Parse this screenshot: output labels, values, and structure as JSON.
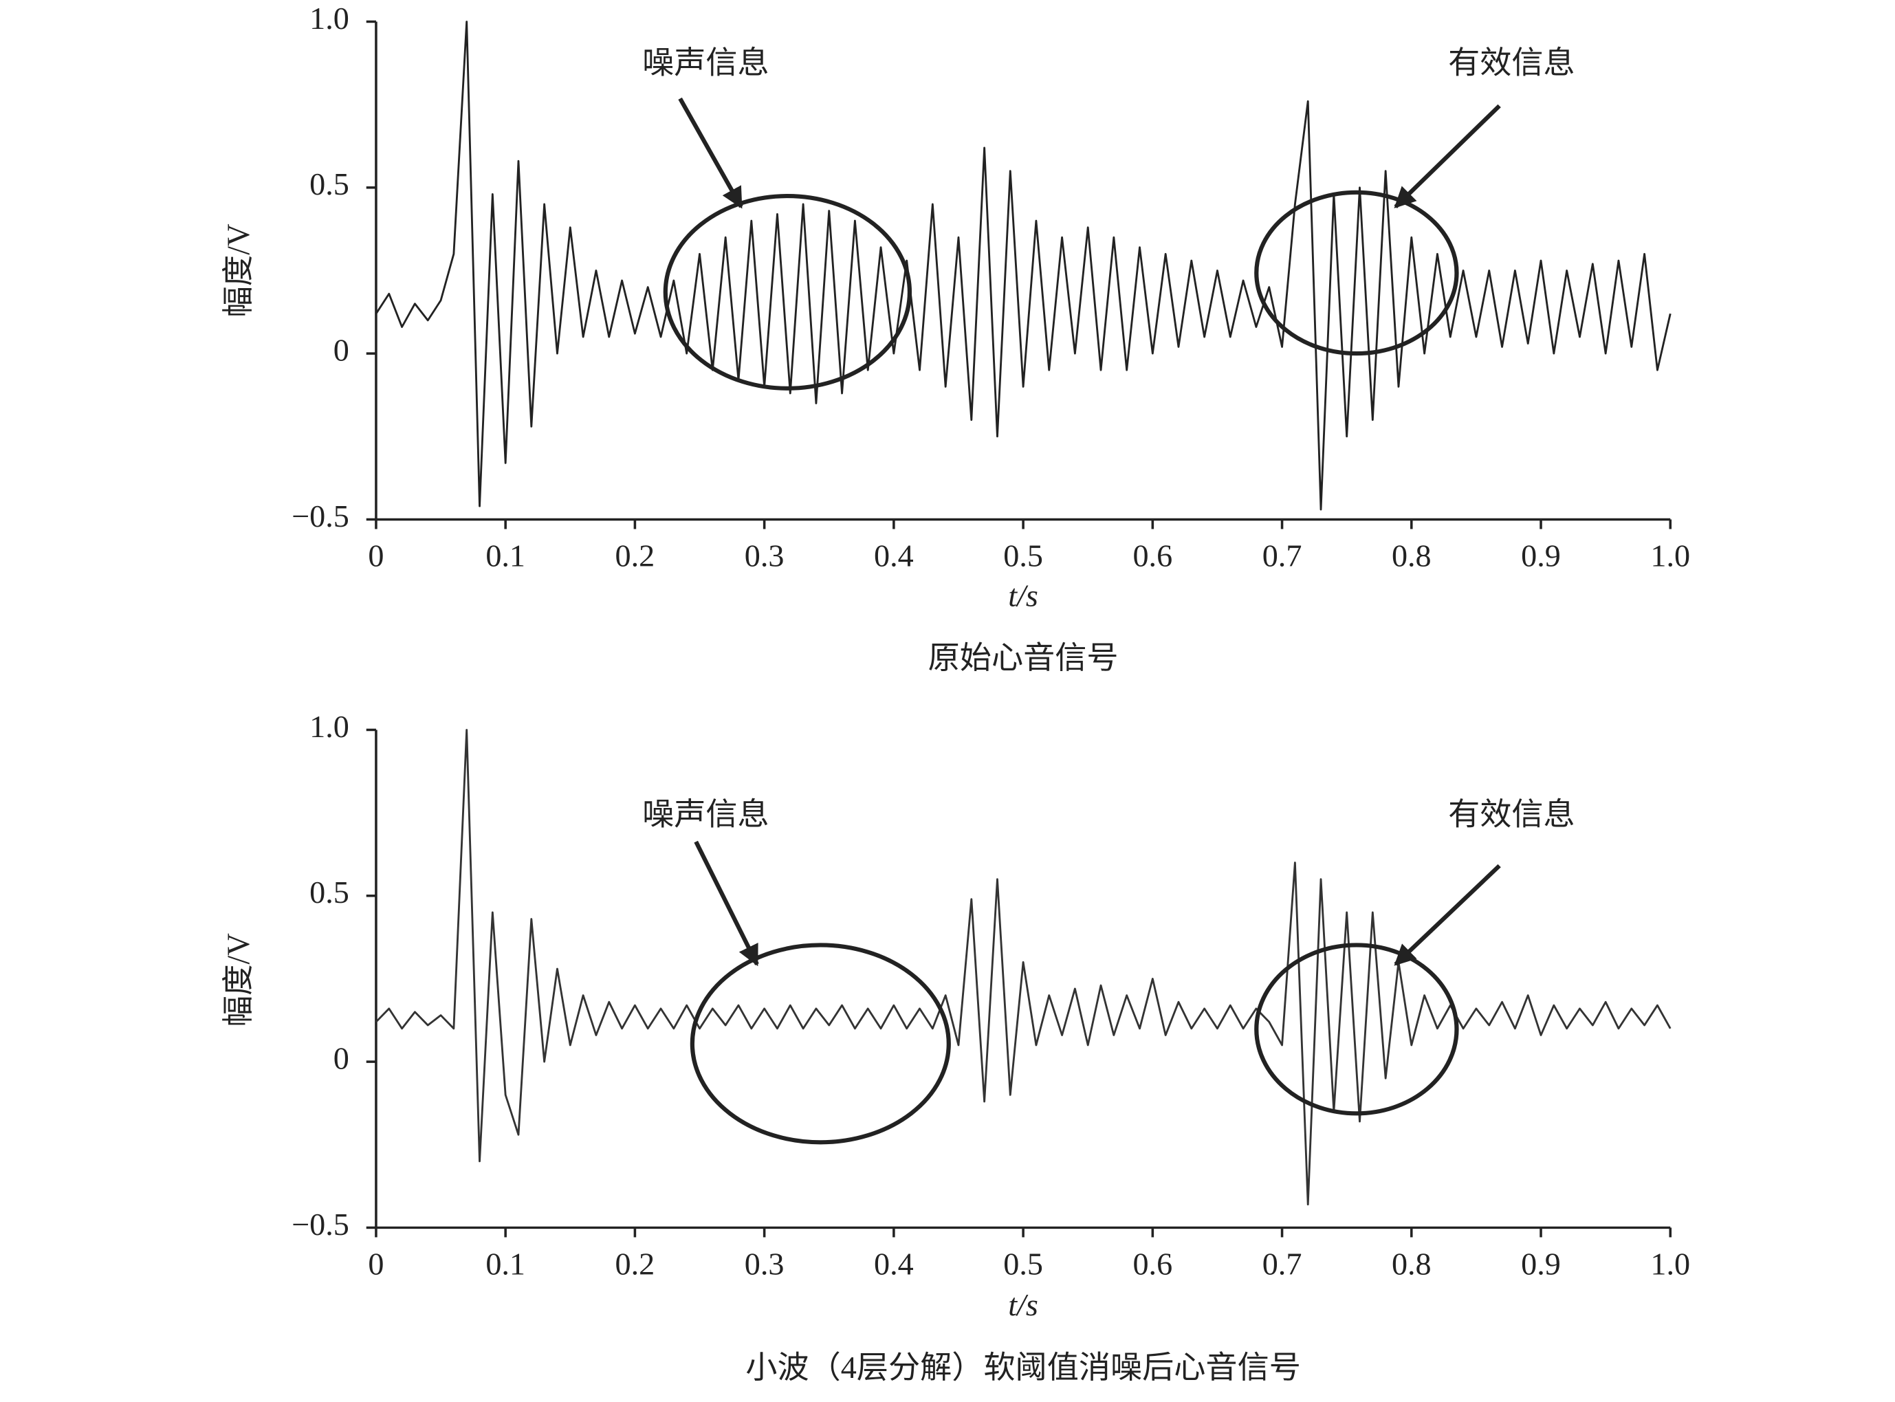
{
  "chart_data": [
    {
      "type": "line",
      "color": "#222222",
      "ylabel": "幅度/V",
      "xlabel": "t/s",
      "caption": "原始心音信号",
      "annotations": [
        "噪声信息",
        "有效信息"
      ],
      "xlim": [
        0,
        1
      ],
      "ylim": [
        -0.5,
        1
      ],
      "xticks": [
        0,
        0.1,
        0.2,
        0.3,
        0.4,
        0.5,
        0.6,
        0.7,
        0.8,
        0.9,
        {
          "value": 1,
          "label": "1.0"
        }
      ],
      "yticks": [
        {
          "value": 1,
          "label": "1.0"
        },
        0.5,
        0,
        {
          "value": -0.5,
          "label": "−0.5"
        }
      ],
      "x": [
        0,
        0.01,
        0.02,
        0.03,
        0.04,
        0.05,
        0.06,
        0.07,
        0.08,
        0.09,
        0.1,
        0.11,
        0.12,
        0.13,
        0.14,
        0.15,
        0.16,
        0.17,
        0.18,
        0.19,
        0.2,
        0.21,
        0.22,
        0.23,
        0.24,
        0.25,
        0.26,
        0.27,
        0.28,
        0.29,
        0.3,
        0.31,
        0.32,
        0.33,
        0.34,
        0.35,
        0.36,
        0.37,
        0.38,
        0.39,
        0.4,
        0.41,
        0.42,
        0.43,
        0.44,
        0.45,
        0.46,
        0.47,
        0.48,
        0.49,
        0.5,
        0.51,
        0.52,
        0.53,
        0.54,
        0.55,
        0.56,
        0.57,
        0.58,
        0.59,
        0.6,
        0.61,
        0.62,
        0.63,
        0.64,
        0.65,
        0.66,
        0.67,
        0.68,
        0.69,
        0.7,
        0.71,
        0.72,
        0.73,
        0.74,
        0.75,
        0.76,
        0.77,
        0.78,
        0.79,
        0.8,
        0.81,
        0.82,
        0.83,
        0.84,
        0.85,
        0.86,
        0.87,
        0.88,
        0.89,
        0.9,
        0.91,
        0.92,
        0.93,
        0.94,
        0.95,
        0.96,
        0.97,
        0.98,
        0.99,
        1
      ],
      "values": [
        0.12,
        0.18,
        0.08,
        0.15,
        0.1,
        0.16,
        0.3,
        1.0,
        -0.46,
        0.48,
        -0.33,
        0.58,
        -0.22,
        0.45,
        0.0,
        0.38,
        0.05,
        0.25,
        0.05,
        0.22,
        0.06,
        0.2,
        0.05,
        0.22,
        0.0,
        0.3,
        -0.05,
        0.35,
        -0.08,
        0.4,
        -0.1,
        0.42,
        -0.12,
        0.45,
        -0.15,
        0.43,
        -0.12,
        0.4,
        -0.05,
        0.32,
        0.0,
        0.28,
        -0.05,
        0.45,
        -0.1,
        0.35,
        -0.2,
        0.62,
        -0.25,
        0.55,
        -0.1,
        0.4,
        -0.05,
        0.35,
        0.0,
        0.38,
        -0.05,
        0.35,
        -0.05,
        0.32,
        0.0,
        0.3,
        0.02,
        0.28,
        0.05,
        0.25,
        0.05,
        0.22,
        0.08,
        0.2,
        0.02,
        0.45,
        0.76,
        -0.47,
        0.48,
        -0.25,
        0.5,
        -0.2,
        0.55,
        -0.1,
        0.35,
        0.0,
        0.3,
        0.05,
        0.25,
        0.05,
        0.25,
        0.02,
        0.25,
        0.03,
        0.28,
        0.0,
        0.25,
        0.05,
        0.27,
        0.0,
        0.28,
        0.02,
        0.3,
        -0.05,
        0.12
      ]
    },
    {
      "type": "line",
      "color": "#333333",
      "ylabel": "幅度/V",
      "xlabel": "t/s",
      "caption": "小波（4层分解）软阈值消噪后心音信号",
      "annotations": [
        "噪声信息",
        "有效信息"
      ],
      "xlim": [
        0,
        1
      ],
      "ylim": [
        -0.5,
        1
      ],
      "xticks": [
        0,
        0.1,
        0.2,
        0.3,
        0.4,
        0.5,
        0.6,
        0.7,
        0.8,
        0.9,
        {
          "value": 1,
          "label": "1.0"
        }
      ],
      "yticks": [
        {
          "value": 1,
          "label": "1.0"
        },
        0.5,
        0,
        {
          "value": -0.5,
          "label": "−0.5"
        }
      ],
      "x": [
        0,
        0.01,
        0.02,
        0.03,
        0.04,
        0.05,
        0.06,
        0.07,
        0.08,
        0.09,
        0.1,
        0.11,
        0.12,
        0.13,
        0.14,
        0.15,
        0.16,
        0.17,
        0.18,
        0.19,
        0.2,
        0.21,
        0.22,
        0.23,
        0.24,
        0.25,
        0.26,
        0.27,
        0.28,
        0.29,
        0.3,
        0.31,
        0.32,
        0.33,
        0.34,
        0.35,
        0.36,
        0.37,
        0.38,
        0.39,
        0.4,
        0.41,
        0.42,
        0.43,
        0.44,
        0.45,
        0.46,
        0.47,
        0.48,
        0.49,
        0.5,
        0.51,
        0.52,
        0.53,
        0.54,
        0.55,
        0.56,
        0.57,
        0.58,
        0.59,
        0.6,
        0.61,
        0.62,
        0.63,
        0.64,
        0.65,
        0.66,
        0.67,
        0.68,
        0.69,
        0.7,
        0.71,
        0.72,
        0.73,
        0.74,
        0.75,
        0.76,
        0.77,
        0.78,
        0.79,
        0.8,
        0.81,
        0.82,
        0.83,
        0.84,
        0.85,
        0.86,
        0.87,
        0.88,
        0.89,
        0.9,
        0.91,
        0.92,
        0.93,
        0.94,
        0.95,
        0.96,
        0.97,
        0.98,
        0.99,
        1
      ],
      "values": [
        0.12,
        0.16,
        0.1,
        0.15,
        0.11,
        0.14,
        0.1,
        1.0,
        -0.3,
        0.45,
        -0.1,
        -0.22,
        0.43,
        0.0,
        0.28,
        0.05,
        0.2,
        0.08,
        0.18,
        0.1,
        0.17,
        0.1,
        0.16,
        0.1,
        0.17,
        0.1,
        0.16,
        0.11,
        0.17,
        0.1,
        0.16,
        0.1,
        0.17,
        0.1,
        0.16,
        0.11,
        0.17,
        0.1,
        0.16,
        0.1,
        0.17,
        0.1,
        0.16,
        0.1,
        0.2,
        0.05,
        0.49,
        -0.12,
        0.55,
        -0.1,
        0.3,
        0.05,
        0.2,
        0.08,
        0.22,
        0.05,
        0.23,
        0.08,
        0.2,
        0.1,
        0.25,
        0.08,
        0.18,
        0.1,
        0.16,
        0.1,
        0.17,
        0.1,
        0.16,
        0.12,
        0.05,
        0.6,
        -0.43,
        0.55,
        -0.15,
        0.45,
        -0.18,
        0.45,
        -0.05,
        0.3,
        0.05,
        0.2,
        0.1,
        0.17,
        0.1,
        0.16,
        0.11,
        0.18,
        0.1,
        0.2,
        0.08,
        0.17,
        0.1,
        0.16,
        0.11,
        0.18,
        0.1,
        0.16,
        0.11,
        0.17,
        0.1
      ]
    }
  ]
}
